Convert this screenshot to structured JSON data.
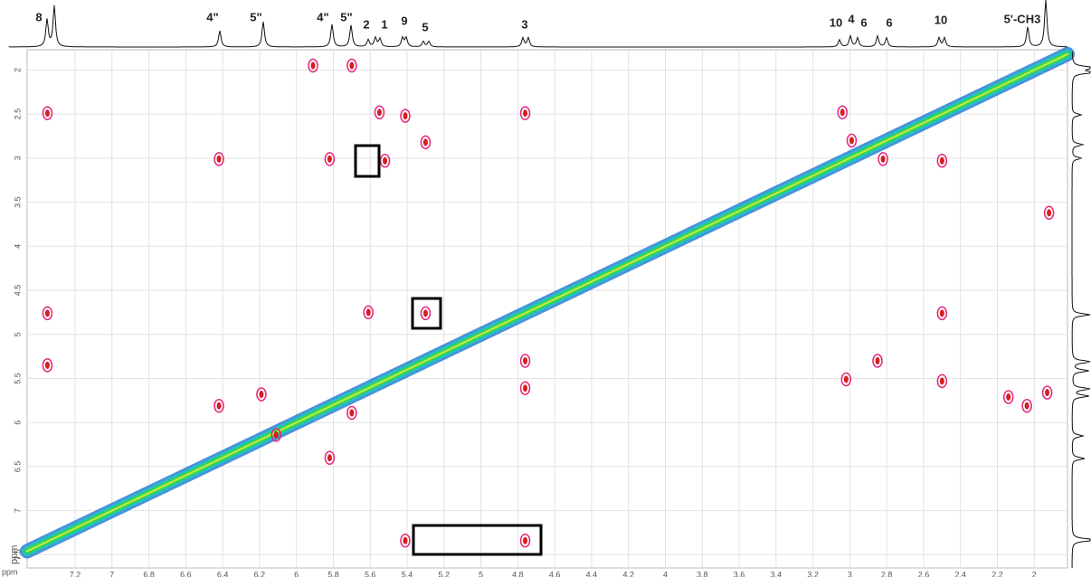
{
  "chart_data": {
    "type": "scatter",
    "x_label": "ppm",
    "y_label": "ppm",
    "peak_labels": [
      "8",
      "4\"",
      "5\"",
      "4\"",
      "5\"",
      "2",
      "1",
      "9",
      "5",
      "3",
      "10",
      "4",
      "6",
      "6",
      "10",
      "5'-CH3"
    ],
    "xlim": [
      7.46,
      1.82
    ],
    "ylim": [
      1.77,
      7.65
    ],
    "xticks": [
      7.2,
      7,
      6.8,
      6.6,
      6.4,
      6.2,
      6,
      5.8,
      5.6,
      5.4,
      5.2,
      5,
      4.8,
      4.6,
      4.4,
      4.2,
      4,
      3.8,
      3.6,
      3.4,
      3.2,
      3,
      2.8,
      2.6,
      2.4,
      2.2,
      2
    ],
    "yticks": [
      2,
      2.5,
      3,
      3.5,
      4,
      4.5,
      5,
      5.5,
      6,
      6.5,
      7,
      7.5
    ],
    "grid": true,
    "series": [
      {
        "color": "#e8237f",
        "x": [
          7.35,
          7.35,
          7.35,
          6.42,
          6.42,
          6.19,
          6.11,
          5.82,
          5.82,
          5.7,
          5.55,
          5.52,
          5.61,
          5.41,
          5.3,
          5.3,
          5.41,
          4.76,
          4.76,
          4.76,
          4.76,
          5.7,
          5.91,
          3.04,
          2.99,
          2.82,
          2.5,
          2.5,
          2.85,
          3.02,
          2.5,
          2.04,
          1.93,
          1.92,
          2.14
        ],
        "values": [
          2.49,
          4.76,
          5.35,
          3.01,
          5.81,
          5.68,
          6.14,
          3.01,
          6.4,
          5.89,
          2.48,
          3.03,
          4.75,
          2.52,
          2.82,
          4.76,
          7.34,
          2.49,
          5.3,
          5.61,
          7.34,
          1.95,
          1.95,
          2.48,
          2.8,
          3.01,
          3.03,
          4.76,
          5.3,
          5.51,
          5.53,
          5.81,
          5.66,
          3.62,
          5.71
        ]
      }
    ]
  }
}
